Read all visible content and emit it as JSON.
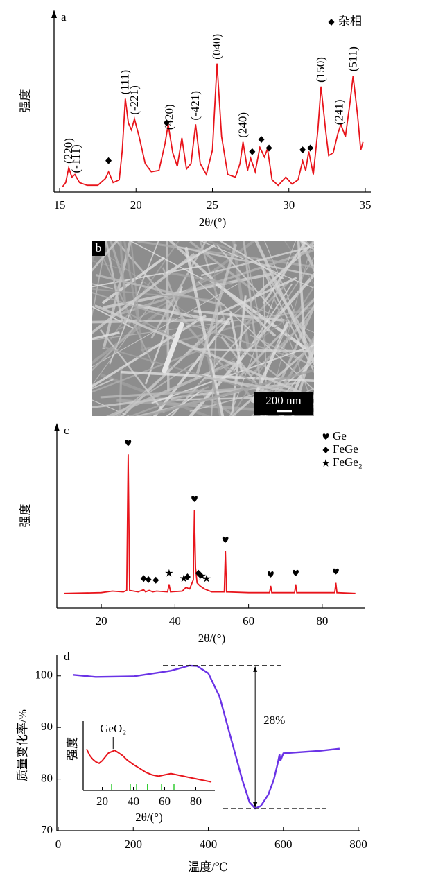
{
  "chart_data": [
    {
      "type": "line",
      "label": "a",
      "xlabel": "2θ/(°)",
      "ylabel": "强度",
      "color": "#e8141b",
      "xlim": [
        15,
        35
      ],
      "xticks": [
        15,
        20,
        25,
        30,
        35
      ],
      "ylim": [
        0,
        100
      ],
      "x": [
        15.2,
        15.4,
        15.6,
        15.8,
        16.0,
        16.3,
        16.8,
        17.5,
        18.0,
        18.2,
        18.5,
        18.9,
        19.1,
        19.3,
        19.5,
        19.7,
        19.9,
        20.2,
        20.6,
        21.0,
        21.5,
        21.9,
        22.1,
        22.4,
        22.7,
        23.0,
        23.3,
        23.6,
        23.9,
        24.2,
        24.6,
        25.0,
        25.3,
        25.6,
        26.0,
        26.5,
        26.8,
        27.0,
        27.3,
        27.5,
        27.8,
        28.1,
        28.4,
        28.6,
        28.9,
        29.3,
        29.8,
        30.2,
        30.6,
        30.9,
        31.1,
        31.3,
        31.6,
        31.9,
        32.1,
        32.4,
        32.6,
        32.9,
        33.2,
        33.4,
        33.7,
        34.0,
        34.2,
        34.5,
        34.7,
        34.85
      ],
      "values": [
        3,
        6,
        17,
        10,
        12,
        6,
        4,
        4,
        9,
        14,
        6,
        8,
        30,
        68,
        50,
        45,
        53,
        40,
        20,
        14,
        15,
        35,
        49,
        28,
        18,
        39,
        16,
        20,
        49,
        20,
        12,
        30,
        94,
        40,
        12,
        10,
        20,
        36,
        15,
        24,
        14,
        32,
        25,
        31,
        8,
        4,
        10,
        5,
        8,
        22,
        15,
        29,
        12,
        45,
        77,
        45,
        26,
        28,
        42,
        49,
        40,
        65,
        85,
        55,
        30,
        36
      ],
      "markers": [
        {
          "name": "杂相",
          "symbol": "diamond",
          "x": [
            18.2,
            22.0,
            27.6,
            28.2,
            28.7,
            30.9,
            31.4
          ]
        }
      ],
      "annotations": [
        {
          "text": "(220)",
          "x": 15.6
        },
        {
          "text": "(-111)",
          "x": 16.1
        },
        {
          "text": "(111)",
          "x": 19.3
        },
        {
          "text": "(-221)",
          "x": 19.9
        },
        {
          "text": "(420)",
          "x": 22.2
        },
        {
          "text": "(-421)",
          "x": 23.9
        },
        {
          "text": "(040)",
          "x": 25.3
        },
        {
          "text": "(240)",
          "x": 27.0
        },
        {
          "text": "(150)",
          "x": 32.1
        },
        {
          "text": "(241)",
          "x": 33.3
        },
        {
          "text": "(511)",
          "x": 34.2
        }
      ]
    },
    {
      "type": "line",
      "label": "c",
      "xlabel": "2θ/(°)",
      "ylabel": "强度",
      "color": "#e8141b",
      "xlim": [
        10,
        90
      ],
      "xticks": [
        20,
        40,
        60,
        80
      ],
      "ylim": [
        0,
        100
      ],
      "x": [
        10,
        20,
        23,
        26,
        26.9,
        27.3,
        27.7,
        30,
        31.5,
        32,
        33,
        34,
        35,
        38,
        38.4,
        38.8,
        42,
        43,
        44,
        45,
        45.3,
        45.6,
        46,
        46.8,
        48,
        50,
        53.4,
        53.7,
        54,
        60,
        65.7,
        66,
        66.3,
        72.5,
        72.8,
        73.1,
        83.4,
        83.7,
        84,
        89
      ],
      "values": [
        1,
        1.5,
        2.5,
        2,
        3,
        93,
        3,
        2,
        3.5,
        2,
        3,
        2,
        2.5,
        2,
        7,
        2,
        2.5,
        5,
        4,
        10,
        56,
        18,
        8,
        6,
        4,
        2,
        2,
        29,
        2,
        1.5,
        1.5,
        6,
        1.5,
        1.5,
        7,
        1.5,
        1.5,
        8,
        1.5,
        1
      ],
      "markers": [
        {
          "name": "Ge",
          "symbol": "heart",
          "x": [
            27.3,
            45.3,
            53.7,
            66,
            72.8,
            83.7
          ]
        },
        {
          "name": "FeGe",
          "symbol": "diamond",
          "x": [
            31.5,
            32.8,
            34.8,
            43.4,
            46.4,
            46.8
          ]
        },
        {
          "name": "FeGe₂",
          "symbol": "star",
          "x": [
            38.4,
            42.4,
            47.3,
            48.6
          ]
        }
      ]
    },
    {
      "type": "line",
      "label": "d",
      "xlabel": "温度/℃",
      "ylabel": "质量变化率/%",
      "color": "#6a33e6",
      "xlim": [
        0,
        800
      ],
      "xticks": [
        0,
        200,
        400,
        600,
        800
      ],
      "ylim": [
        70,
        104
      ],
      "yticks": [
        70,
        80,
        90,
        100
      ],
      "x": [
        40,
        100,
        200,
        300,
        350,
        370,
        400,
        430,
        460,
        490,
        510,
        525,
        540,
        560,
        575,
        585,
        590,
        592,
        600,
        700,
        750
      ],
      "values": [
        100.2,
        99.8,
        99.9,
        101,
        102,
        101.9,
        100.5,
        96,
        88,
        80,
        75.5,
        74.3,
        74.8,
        77,
        80,
        83,
        84.8,
        83.5,
        85,
        85.5,
        85.9
      ],
      "annotation": "28%"
    },
    {
      "type": "line",
      "xlabel": "2θ/(°)",
      "ylabel": "强度",
      "color": "#e8141b",
      "xlim": [
        10,
        90
      ],
      "xticks": [
        20,
        40,
        60,
        80
      ],
      "ylim": [
        0,
        100
      ],
      "x": [
        10,
        12,
        14,
        16,
        18,
        20,
        22,
        24,
        26,
        28,
        30,
        33,
        36,
        40,
        44,
        48,
        52,
        56,
        60,
        64,
        68,
        72,
        76,
        80,
        84,
        88,
        90
      ],
      "values": [
        62,
        52,
        46,
        42,
        40,
        44,
        50,
        56,
        58,
        60,
        57,
        52,
        45,
        38,
        32,
        26,
        22,
        20,
        22,
        24,
        22,
        20,
        18,
        16,
        14,
        12,
        11
      ],
      "reference_peaks": {
        "color": "#33cc33",
        "x": [
          26,
          38,
          42,
          49,
          58,
          66
        ]
      },
      "annotations": [
        {
          "text": "GeO₂",
          "x": 27
        }
      ]
    }
  ],
  "image_panel": {
    "label": "b",
    "scale_bar": "200 nm"
  }
}
